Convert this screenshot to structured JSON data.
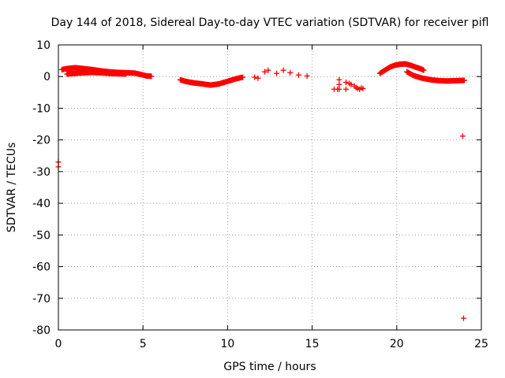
{
  "chart_data": {
    "type": "scatter",
    "title": "Day 144 of 2018, Sidereal Day-to-day VTEC variation (SDTVAR) for receiver pifl",
    "xlabel": "GPS time / hours",
    "ylabel": "SDTVAR / TECUs",
    "xlim": [
      0,
      25
    ],
    "ylim": [
      -80,
      10
    ],
    "xticks": [
      0,
      5,
      10,
      15,
      20,
      25
    ],
    "yticks": [
      10,
      0,
      -10,
      -20,
      -30,
      -40,
      -50,
      -60,
      -70,
      -80
    ],
    "xtick_labels": [
      "0",
      "5",
      "10",
      "15",
      "20",
      "25"
    ],
    "ytick_labels": [
      "10",
      "0",
      "-10",
      "-20",
      "-30",
      "-40",
      "-50",
      "-60",
      "-70",
      "-80"
    ],
    "grid": true,
    "marker": "plus",
    "color": "#ff0000",
    "segments": [
      {
        "x": [
          0.2,
          0.5,
          1.0,
          1.5,
          2.0,
          2.5,
          3.0,
          3.5,
          4.0,
          4.5,
          5.0,
          5.2,
          5.5
        ],
        "y": [
          2.2,
          2.5,
          2.8,
          2.5,
          2.2,
          1.8,
          1.5,
          1.3,
          1.2,
          1.1,
          0.5,
          0.2,
          0.1
        ]
      },
      {
        "x": [
          0.5,
          1.0,
          1.5,
          2.0,
          2.5,
          3.0,
          3.5,
          4.0
        ],
        "y": [
          0.8,
          1.0,
          1.2,
          1.3,
          1.2,
          1.0,
          0.9,
          0.8
        ]
      },
      {
        "x": [
          7.2,
          7.5,
          8.0,
          8.5,
          9.0,
          9.5,
          10.0,
          10.5,
          10.9
        ],
        "y": [
          -1.0,
          -1.5,
          -2.0,
          -2.3,
          -2.7,
          -2.3,
          -1.5,
          -0.7,
          -0.2
        ]
      },
      {
        "x": [
          19.0,
          19.3,
          19.6,
          19.9,
          20.2,
          20.5,
          20.8,
          21.1,
          21.4,
          21.6
        ],
        "y": [
          1.0,
          2.0,
          3.0,
          3.6,
          3.9,
          4.0,
          3.6,
          3.0,
          2.5,
          2.0
        ]
      },
      {
        "x": [
          20.6,
          21.0,
          21.5,
          22.0,
          22.5,
          23.0,
          23.5,
          24.0
        ],
        "y": [
          1.5,
          0.3,
          -0.5,
          -1.0,
          -1.3,
          -1.4,
          -1.3,
          -1.2
        ]
      }
    ],
    "isolated_points": {
      "x": [
        0.0,
        0.0,
        11.6,
        11.8,
        12.2,
        12.4,
        12.9,
        13.3,
        13.7,
        14.2,
        14.7,
        16.3,
        16.5,
        16.6,
        16.6,
        16.6,
        17.0,
        17.0,
        17.2,
        17.3,
        17.5,
        17.6,
        17.7,
        17.8,
        17.9,
        18.0,
        23.9,
        23.95
      ],
      "y": [
        -27.0,
        -28.5,
        -0.2,
        -0.5,
        1.5,
        2.0,
        1.0,
        2.0,
        1.2,
        0.5,
        0.2,
        -4.0,
        -4.0,
        -1.0,
        -2.5,
        -4.0,
        -1.8,
        -4.0,
        -2.2,
        -2.5,
        -3.0,
        -3.5,
        -3.8,
        -4.0,
        -3.6,
        -3.8,
        -18.8,
        -76.3
      ]
    }
  }
}
